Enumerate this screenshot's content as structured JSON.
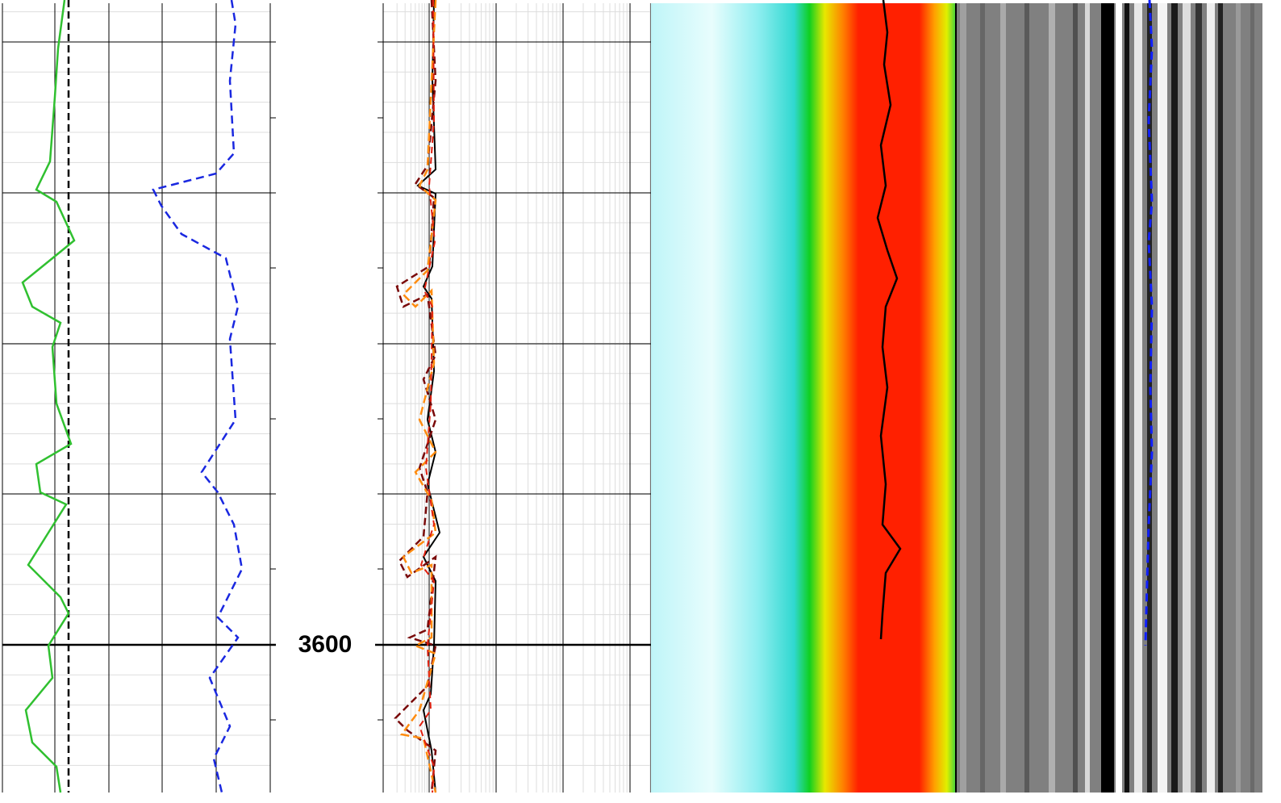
{
  "depth_label": "3600"
}
